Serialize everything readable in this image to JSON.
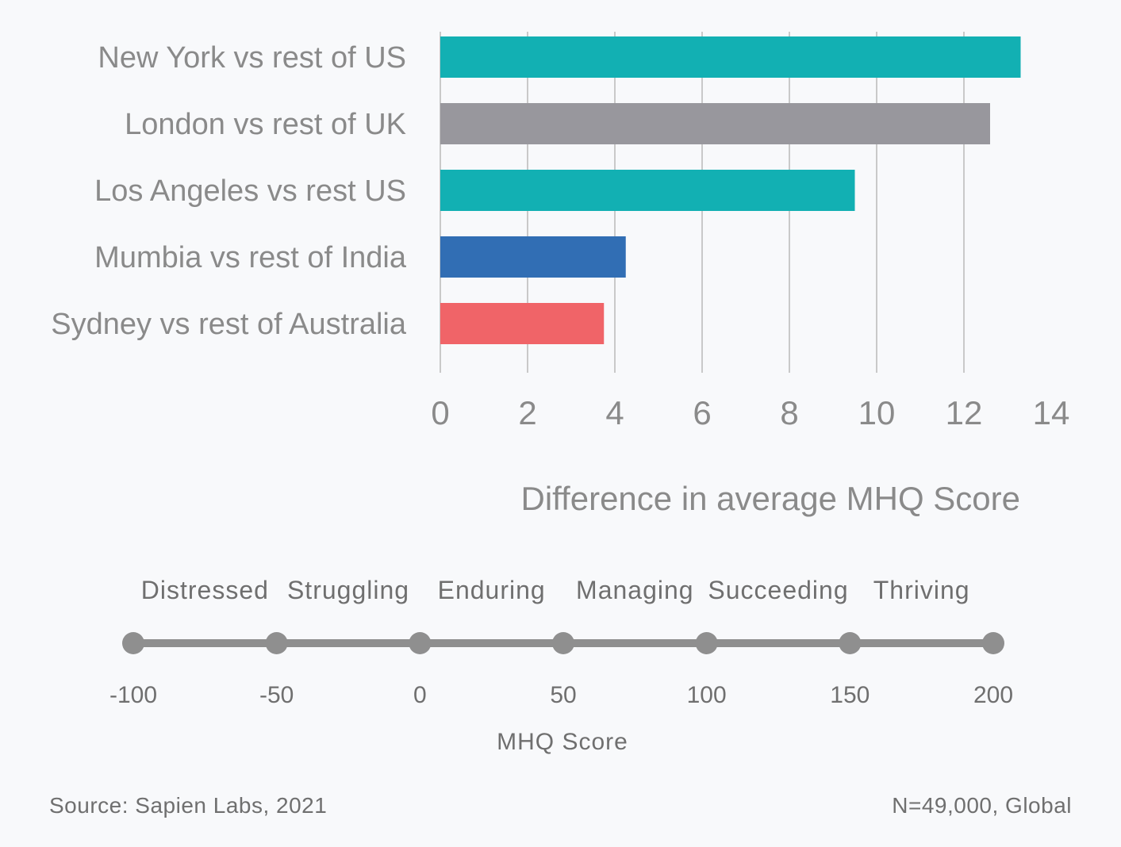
{
  "chart_data": [
    {
      "type": "bar",
      "orientation": "horizontal",
      "categories": [
        "New York vs rest of US",
        "London vs rest of UK",
        "Los Angeles vs rest US",
        "Mumbia vs rest of India",
        "Sydney vs rest of Australia"
      ],
      "values": [
        13.3,
        12.6,
        9.5,
        4.25,
        3.75
      ],
      "colors": [
        "#12b0b3",
        "#98979d",
        "#12b0b3",
        "#316eb4",
        "#f06468"
      ],
      "xlabel": "Difference in average MHQ Score",
      "xlim": [
        0,
        14
      ],
      "xticks": [
        0,
        2,
        4,
        6,
        8,
        10,
        12,
        14
      ],
      "grid": "vertical"
    },
    {
      "type": "scale",
      "xlabel": "MHQ Score",
      "ticks": [
        -100,
        -50,
        0,
        50,
        100,
        150,
        200
      ],
      "bands": [
        "Distressed",
        "Struggling",
        "Enduring",
        "Managing",
        "Succeeding",
        "Thriving"
      ],
      "line_color": "#8f8f8f"
    }
  ],
  "footer": {
    "source": "Source: Sapien Labs, 2021",
    "sample": "N=49,000, Global"
  }
}
